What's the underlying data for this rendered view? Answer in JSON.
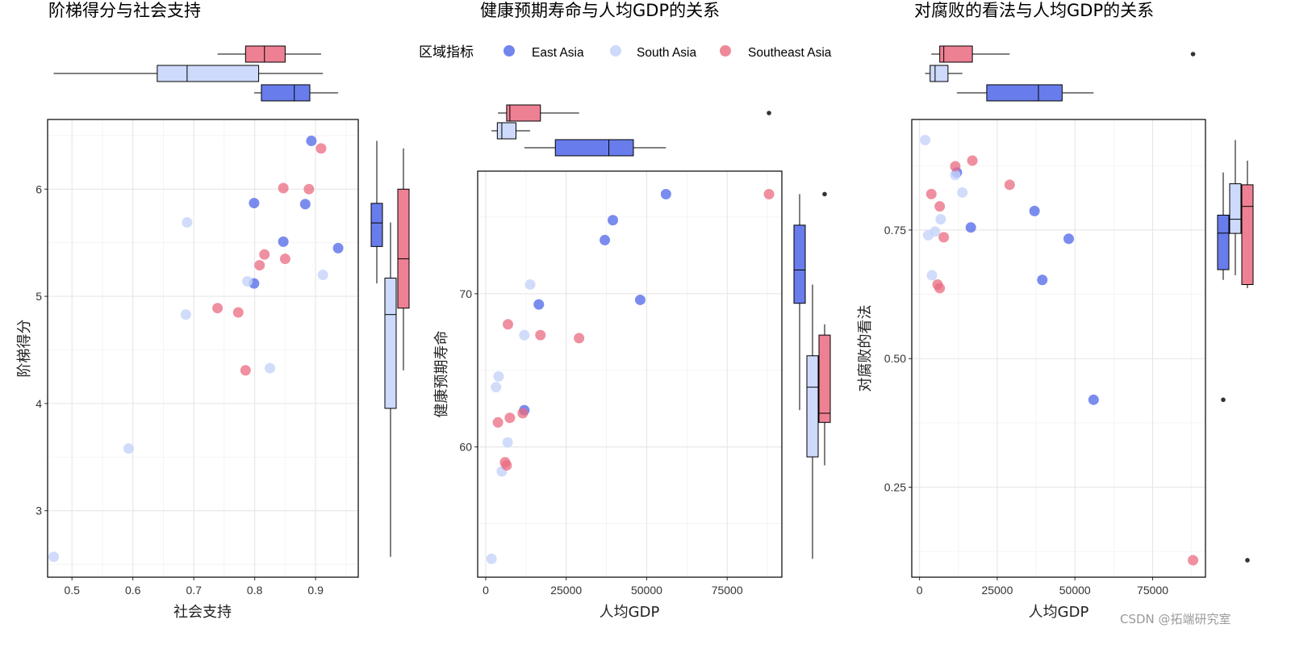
{
  "legend": {
    "title": "区域指标",
    "entries": [
      {
        "name": "East Asia",
        "color": "#4d66e8"
      },
      {
        "name": "South Asia",
        "color": "#c5d3fa"
      },
      {
        "name": "Southeast Asia",
        "color": "#ea6b80"
      }
    ]
  },
  "watermark": "CSDN @拓端研究室",
  "chart_data": [
    {
      "type": "scatter",
      "title": "阶梯得分与社会支持",
      "xlabel": "社会支持",
      "ylabel": "阶梯得分",
      "xlim": [
        0.46,
        0.97
      ],
      "ylim": [
        2.38,
        6.65
      ],
      "xticks": [
        0.5,
        0.6,
        0.7,
        0.8,
        0.9
      ],
      "xtick_labels": [
        "0.5",
        "0.6",
        "0.7",
        "0.8",
        "0.9"
      ],
      "yticks": [
        3,
        4,
        5,
        6
      ],
      "ytick_labels": [
        "3",
        "4",
        "5",
        "6"
      ],
      "series": [
        {
          "name": "East Asia",
          "x": [
            0.893,
            0.799,
            0.883,
            0.847,
            0.937,
            0.799
          ],
          "y": [
            6.45,
            5.87,
            5.86,
            5.51,
            5.45,
            5.12
          ]
        },
        {
          "name": "South Asia",
          "x": [
            0.689,
            0.788,
            0.912,
            0.687,
            0.825,
            0.593,
            0.47
          ],
          "y": [
            5.69,
            5.14,
            5.2,
            4.83,
            4.33,
            3.58,
            2.57
          ]
        },
        {
          "name": "Southeast Asia",
          "x": [
            0.909,
            0.847,
            0.889,
            0.816,
            0.85,
            0.808,
            0.739,
            0.773,
            0.785
          ],
          "y": [
            6.38,
            6.01,
            6.0,
            5.39,
            5.35,
            5.29,
            4.89,
            4.85,
            4.31
          ]
        }
      ]
    },
    {
      "type": "scatter",
      "title": "健康预期寿命与人均GDP的关系",
      "xlabel": "人均GDP",
      "ylabel": "健康预期寿命",
      "xlim": [
        -2500,
        92000
      ],
      "ylim": [
        51.5,
        78.0
      ],
      "xticks": [
        0,
        25000,
        50000,
        75000
      ],
      "xtick_labels": [
        "0",
        "25000",
        "50000",
        "75000"
      ],
      "yticks": [
        60,
        70
      ],
      "ytick_labels": [
        "60",
        "70"
      ],
      "series": [
        {
          "name": "East Asia",
          "x": [
            56000,
            39500,
            37000,
            48000,
            16500,
            12000
          ],
          "y": [
            76.5,
            74.8,
            73.5,
            69.6,
            69.3,
            62.4
          ]
        },
        {
          "name": "South Asia",
          "x": [
            13800,
            12000,
            4000,
            3200,
            6800,
            5000,
            1800
          ],
          "y": [
            70.6,
            67.3,
            64.6,
            63.9,
            60.3,
            58.4,
            52.7
          ]
        },
        {
          "name": "Southeast Asia",
          "x": [
            88000,
            6900,
            17000,
            29000,
            7500,
            3800,
            11500,
            6000,
            6500
          ],
          "y": [
            76.5,
            68.0,
            67.3,
            67.1,
            61.9,
            61.6,
            62.2,
            59.0,
            58.8
          ]
        }
      ]
    },
    {
      "type": "scatter",
      "title": "对腐败的看法与人均GDP的关系",
      "xlabel": "人均GDP",
      "ylabel": "对腐败的看法",
      "xlim": [
        -2500,
        92000
      ],
      "ylim": [
        0.075,
        0.965
      ],
      "xticks": [
        0,
        25000,
        50000,
        75000
      ],
      "xtick_labels": [
        "0",
        "25000",
        "50000",
        "75000"
      ],
      "yticks": [
        0.25,
        0.5,
        0.75
      ],
      "ytick_labels": [
        "0.25",
        "0.50",
        "0.75"
      ],
      "series": [
        {
          "name": "East Asia",
          "x": [
            12000,
            37000,
            16500,
            48000,
            39500,
            56000
          ],
          "y": [
            0.862,
            0.787,
            0.755,
            0.733,
            0.653,
            0.42
          ]
        },
        {
          "name": "South Asia",
          "x": [
            1800,
            11500,
            13800,
            6800,
            5000,
            2800,
            4000
          ],
          "y": [
            0.925,
            0.857,
            0.823,
            0.771,
            0.747,
            0.74,
            0.662
          ]
        },
        {
          "name": "Southeast Asia",
          "x": [
            17000,
            11500,
            29000,
            3800,
            6500,
            7800,
            5800,
            6500,
            88000
          ],
          "y": [
            0.885,
            0.874,
            0.838,
            0.82,
            0.796,
            0.736,
            0.644,
            0.637,
            0.108
          ]
        }
      ]
    }
  ]
}
